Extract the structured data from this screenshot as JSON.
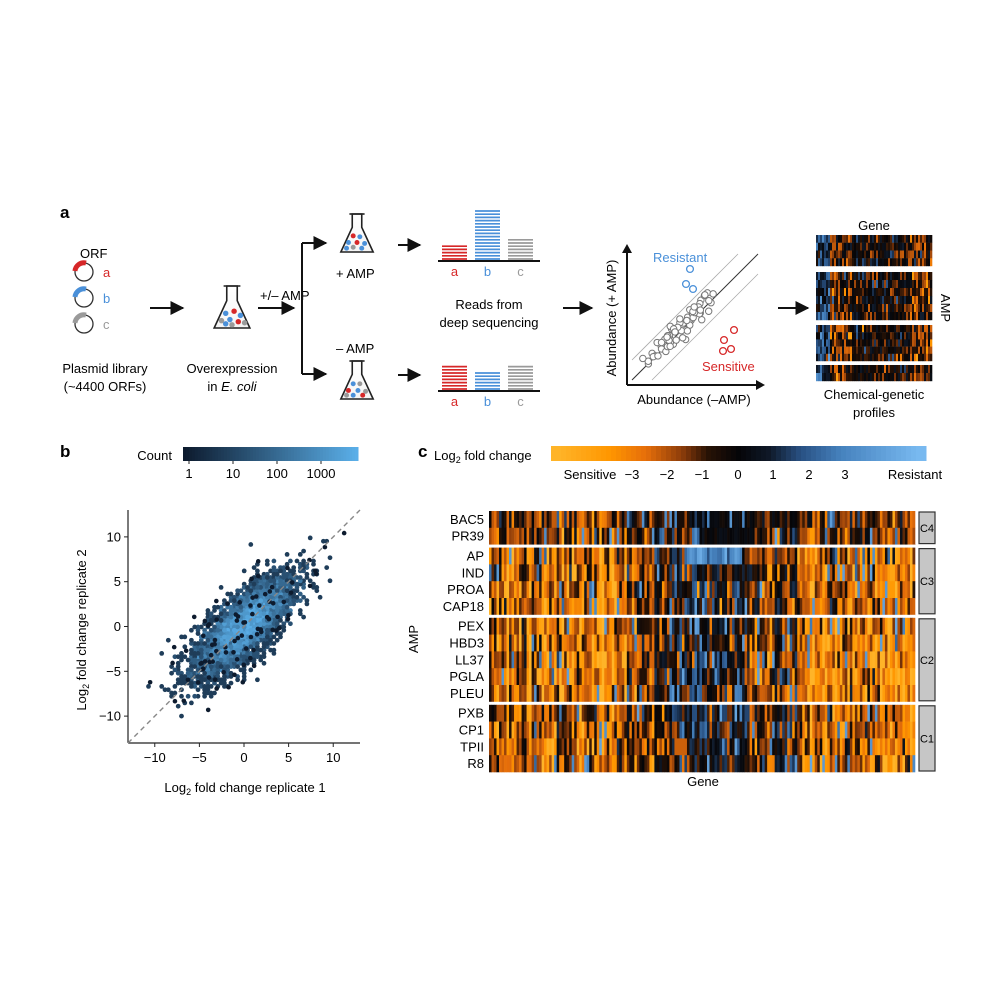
{
  "panel_a": {
    "label": "a",
    "orf_label": "ORF",
    "plasmids": [
      {
        "letter": "a",
        "color": "#d62728"
      },
      {
        "letter": "b",
        "color": "#4a90d9"
      },
      {
        "letter": "c",
        "color": "#9a9a9a"
      }
    ],
    "library_line1": "Plasmid library",
    "library_line2": "(~4400 ORFs)",
    "overexpression_line1": "Overexpression",
    "overexpression_line2_prefix": "in ",
    "overexpression_line2_italic": "E. coli",
    "treatment_label": "+/– AMP",
    "plus_amp": "+ AMP",
    "minus_amp": "– AMP",
    "reads_line1": "Reads from",
    "reads_line2": "deep sequencing",
    "bar_letters": [
      "a",
      "b",
      "c"
    ],
    "plus_bar_levels": [
      0.3,
      1.0,
      0.45
    ],
    "minus_bar_levels": [
      0.55,
      0.42,
      0.5
    ],
    "scatter_ylabel": "Abundance (+ AMP)",
    "scatter_xlabel": "Abundance (–AMP)",
    "resistant_label": "Resistant",
    "sensitive_label": "Sensitive",
    "gene_label": "Gene",
    "amp_label": "AMP",
    "profiles_line1": "Chemical-genetic",
    "profiles_line2": "profiles",
    "colors": {
      "red": "#d62728",
      "blue": "#4a90d9",
      "gray": "#9a9a9a"
    }
  },
  "panel_b": {
    "label": "b",
    "colorbar_label": "Count",
    "colorbar_ticks": [
      "1",
      "10",
      "100",
      "1000"
    ],
    "chart_data": {
      "type": "scatter",
      "subtype": "hexbin density",
      "xlabel_prefix": "Log",
      "xlabel_sub": "2",
      "xlabel_suffix": " fold change replicate 1",
      "ylabel_prefix": "Log",
      "ylabel_sub": "2",
      "ylabel_suffix": " fold change replicate 2",
      "xlim": [
        -13,
        13
      ],
      "ylim": [
        -13,
        13
      ],
      "xticks": [
        -10,
        -5,
        0,
        5,
        10
      ],
      "yticks": [
        -10,
        -5,
        0,
        5,
        10
      ],
      "xtick_labels": [
        "−10",
        "−5",
        "0",
        "5",
        "10"
      ],
      "ytick_labels": [
        "−10",
        "−5",
        "0",
        "5",
        "10"
      ],
      "diagonal": "y = x (dashed)",
      "colormap": [
        "#0d1b2e",
        "#5aaee8"
      ]
    }
  },
  "panel_c": {
    "label": "c",
    "colorbar_title_prefix": "Log",
    "colorbar_title_sub": "2",
    "colorbar_title_suffix": " fold change",
    "colorbar_labels": [
      "Sensitive",
      "−3",
      "−2",
      "−1",
      "0",
      "1",
      "2",
      "3",
      "Resistant"
    ],
    "colorbar_colors": [
      "#ff9d00",
      "#ff8a00",
      "#ff7a00",
      "#ff5a00",
      "#000000",
      "#1a2a3a",
      "#2e6aa0",
      "#4a8fcf",
      "#7ab8ee"
    ],
    "chart_data": {
      "type": "heatmap",
      "xlabel": "Gene",
      "ylabel": "AMP",
      "rows": [
        "BAC5",
        "PR39",
        "AP",
        "IND",
        "PROA",
        "CAP18",
        "PEX",
        "HBD3",
        "LL37",
        "PGLA",
        "PLEU",
        "PXB",
        "CP1",
        "TPII",
        "R8"
      ],
      "clusters": [
        {
          "name": "C4",
          "rows": [
            "BAC5",
            "PR39"
          ]
        },
        {
          "name": "C3",
          "rows": [
            "AP",
            "IND",
            "PROA",
            "CAP18"
          ]
        },
        {
          "name": "C2",
          "rows": [
            "PEX",
            "HBD3",
            "LL37",
            "PGLA",
            "PLEU"
          ]
        },
        {
          "name": "C1",
          "rows": [
            "PXB",
            "CP1",
            "TPII",
            "R8"
          ]
        }
      ],
      "value_range": [
        -3,
        3
      ]
    }
  }
}
